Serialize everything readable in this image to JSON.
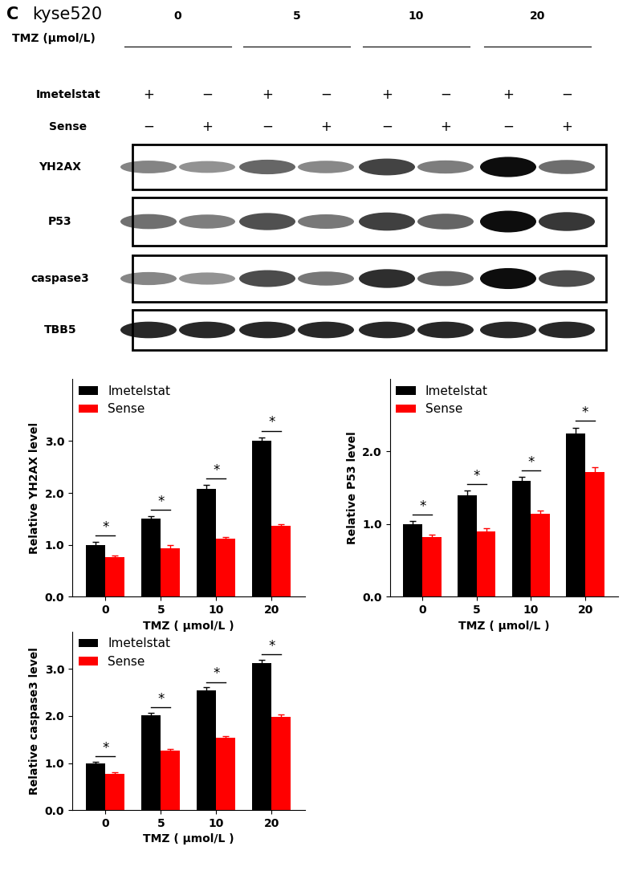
{
  "panel_label": "C",
  "cell_line": "kyse520",
  "blot": {
    "tmz_label": "TMZ (μmol/L)",
    "doses": [
      "0",
      "5",
      "10",
      "20"
    ],
    "treatment_rows": [
      {
        "name": "Imetelstat",
        "signs": [
          "+",
          "−",
          "+",
          "−",
          "+",
          "−",
          "+",
          "−"
        ]
      },
      {
        "name": "Sense",
        "signs": [
          "−",
          "+",
          "−",
          "+",
          "−",
          "+",
          "−",
          "+"
        ]
      }
    ],
    "proteins": [
      "YH2AX",
      "P53",
      "caspase3",
      "TBB5"
    ]
  },
  "chart_data": [
    {
      "type": "bar",
      "categories": [
        "0",
        "5",
        "10",
        "20"
      ],
      "x_label": "TMZ ( μmol/L )",
      "y_label": "Relative YH2AX level",
      "ylim": [
        0,
        4.2
      ],
      "yticks": [
        {
          "value": 0,
          "label": "0.0"
        },
        {
          "value": 1,
          "label": "1.0"
        },
        {
          "value": 2,
          "label": "2.0"
        },
        {
          "value": 3,
          "label": "3.0"
        }
      ],
      "legend": "upper left",
      "series": [
        {
          "name": "Imetelstat",
          "color": "#000000",
          "values": [
            1.0,
            1.5,
            2.08,
            3.0
          ],
          "errors": [
            0.05,
            0.05,
            0.07,
            0.07
          ]
        },
        {
          "name": "Sense",
          "color": "#ff0000",
          "values": [
            0.76,
            0.93,
            1.12,
            1.36
          ],
          "errors": [
            0.03,
            0.06,
            0.03,
            0.04
          ]
        }
      ],
      "significance": [
        "*",
        "*",
        "*",
        "*"
      ]
    },
    {
      "type": "bar",
      "categories": [
        "0",
        "5",
        "10",
        "20"
      ],
      "x_label": "TMZ ( μmol/L )",
      "y_label": "Relative P53 level",
      "ylim": [
        0,
        3.0
      ],
      "yticks": [
        {
          "value": 0,
          "label": "0.0"
        },
        {
          "value": 1,
          "label": "1.0"
        },
        {
          "value": 2,
          "label": "2.0"
        }
      ],
      "legend": "upper left",
      "series": [
        {
          "name": "Imetelstat",
          "color": "#000000",
          "values": [
            1.0,
            1.4,
            1.6,
            2.25
          ],
          "errors": [
            0.04,
            0.06,
            0.05,
            0.08
          ]
        },
        {
          "name": "Sense",
          "color": "#ff0000",
          "values": [
            0.82,
            0.9,
            1.14,
            1.72
          ],
          "errors": [
            0.03,
            0.04,
            0.05,
            0.06
          ]
        }
      ],
      "significance": [
        "*",
        "*",
        "*",
        "*"
      ]
    },
    {
      "type": "bar",
      "categories": [
        "0",
        "5",
        "10",
        "20"
      ],
      "x_label": "TMZ ( μmol/L )",
      "y_label": "Relative caspase3 level",
      "ylim": [
        0,
        3.8
      ],
      "yticks": [
        {
          "value": 0,
          "label": "0.0"
        },
        {
          "value": 1,
          "label": "1.0"
        },
        {
          "value": 2,
          "label": "2.0"
        },
        {
          "value": 3,
          "label": "3.0"
        }
      ],
      "legend": "upper left",
      "series": [
        {
          "name": "Imetelstat",
          "color": "#000000",
          "values": [
            1.0,
            2.02,
            2.54,
            3.12
          ],
          "errors": [
            0.03,
            0.05,
            0.07,
            0.08
          ]
        },
        {
          "name": "Sense",
          "color": "#ff0000",
          "values": [
            0.77,
            1.27,
            1.54,
            1.99
          ],
          "errors": [
            0.03,
            0.03,
            0.04,
            0.04
          ]
        }
      ],
      "significance": [
        "*",
        "*",
        "*",
        "*"
      ]
    }
  ]
}
